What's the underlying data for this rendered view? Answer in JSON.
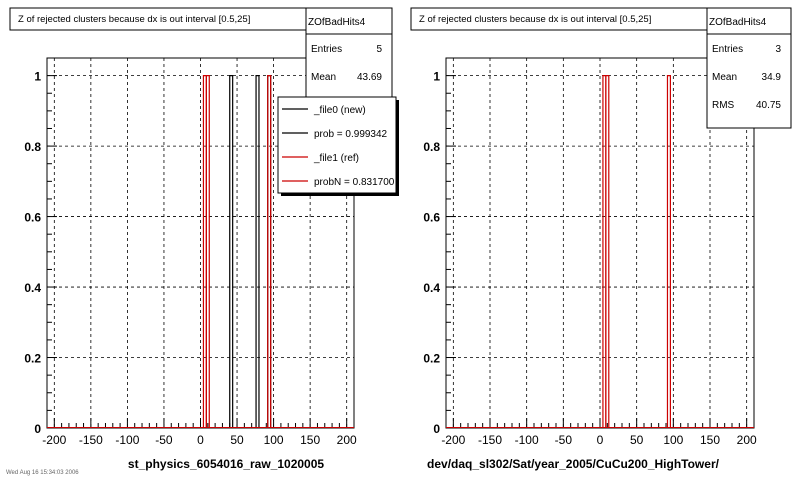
{
  "chart_data": [
    {
      "type": "bar",
      "title": "Z of rejected clusters  because dx is out interval [0.5,25]",
      "xlabel": "st_physics_6054016_raw_1020005",
      "xlim": [
        -210,
        210
      ],
      "ylim": [
        0,
        1.05
      ],
      "x_ticks": [
        "-200",
        "-150",
        "-100",
        "-50",
        "0",
        "50",
        "100",
        "150",
        "200"
      ],
      "y_ticks": [
        "0",
        "0.2",
        "0.4",
        "0.6",
        "0.8",
        "1"
      ],
      "grid": true,
      "stats": {
        "name": "ZOfBadHits4",
        "rows": [
          {
            "label": "Entries",
            "value": "5"
          },
          {
            "label": "Mean",
            "value": "43.69"
          }
        ]
      },
      "legend": {
        "placement": "top-right",
        "entries": [
          {
            "label": "_file0 (new)",
            "color": "#000000"
          },
          {
            "label": "prob = 0.999342",
            "color": "#000000"
          },
          {
            "label": "_file1 (ref)",
            "color": "#cc0000"
          },
          {
            "label": "probN = 0.831700",
            "color": "#cc0000"
          }
        ]
      },
      "series": [
        {
          "color": "#000000",
          "bins": [
            [
              40,
              44
            ],
            [
              76,
              80
            ],
            [
              92,
              96
            ]
          ]
        },
        {
          "color": "#cc0000",
          "bins": [
            [
              4,
              8
            ],
            [
              8,
              12
            ],
            [
              92,
              96
            ]
          ]
        }
      ]
    },
    {
      "type": "bar",
      "title": "Z of rejected clusters  because dx is out interval [0.5,25]",
      "xlabel": "dev/daq_sl302/Sat/year_2005/CuCu200_HighTower/",
      "xlim": [
        -210,
        210
      ],
      "ylim": [
        0,
        1.05
      ],
      "x_ticks": [
        "-200",
        "-150",
        "-100",
        "-50",
        "0",
        "50",
        "100",
        "150",
        "200"
      ],
      "y_ticks": [
        "0",
        "0.2",
        "0.4",
        "0.6",
        "0.8",
        "1"
      ],
      "grid": true,
      "stats": {
        "name": "ZOfBadHits4",
        "rows": [
          {
            "label": "Entries",
            "value": "3"
          },
          {
            "label": "Mean",
            "value": "34.9"
          },
          {
            "label": "RMS",
            "value": "40.75"
          }
        ]
      },
      "series": [
        {
          "color": "#cc0000",
          "bins": [
            [
              4,
              8
            ],
            [
              8,
              12
            ],
            [
              92,
              96
            ]
          ]
        }
      ]
    }
  ],
  "footer_text": "Wed Aug 16 15:34:03 2006"
}
